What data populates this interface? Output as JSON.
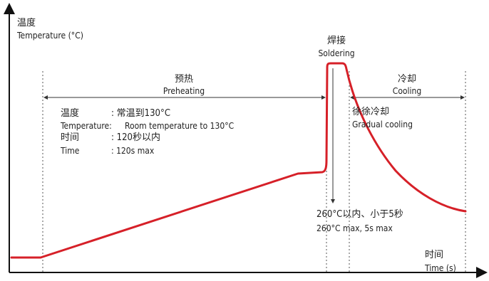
{
  "axes": {
    "y_label_cn": "温度",
    "y_label_en": "Temperature (°C)",
    "x_label_cn": "时间",
    "x_label_en": "Time (s)"
  },
  "zones": {
    "preheat": {
      "title_cn": "预热",
      "title_en": "Preheating"
    },
    "soldering": {
      "title_cn": "焊接",
      "title_en": "Soldering"
    },
    "cooling": {
      "title_cn": "冷却",
      "title_en": "Cooling"
    }
  },
  "preheat_specs": {
    "temp_label_cn": "温度",
    "temp_value_cn": ": 常温到130°C",
    "temp_label_en": "Temperature:",
    "temp_value_en": "Room temperature to 130°C",
    "time_label_cn": "时间",
    "time_value_cn": ": 120秒以内",
    "time_label_en": "Time",
    "time_value_en": ": 120s max"
  },
  "cooling_specs": {
    "note_cn": "徐徐冷却",
    "note_en": "Gradual cooling"
  },
  "soldering_specs": {
    "note_cn": "260°C以内、小于5秒",
    "note_en": "260°C max, 5s max"
  },
  "colors": {
    "curve": "#d62028",
    "axis": "#111111",
    "guide": "#444444"
  }
}
